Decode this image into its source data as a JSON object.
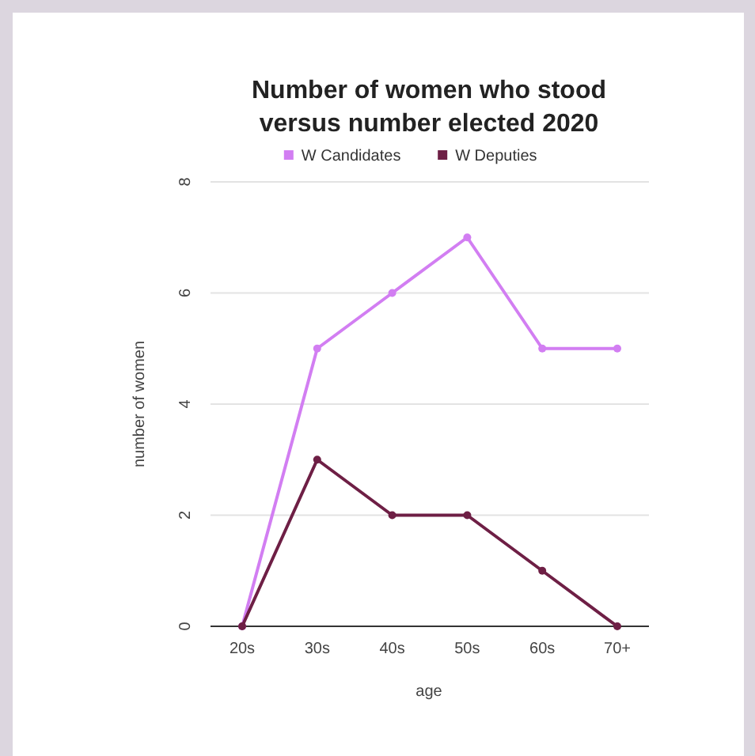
{
  "chart_data": {
    "type": "line",
    "title": "Number of women who stood\nversus number elected 2020",
    "xlabel": "age",
    "ylabel": "number of women",
    "categories": [
      "20s",
      "30s",
      "40s",
      "50s",
      "60s",
      "70+"
    ],
    "series": [
      {
        "name": "W Candidates",
        "color": "#d27ef2",
        "values": [
          0,
          5,
          6,
          7,
          5,
          5
        ]
      },
      {
        "name": "W Deputies",
        "color": "#6e1f45",
        "values": [
          0,
          3,
          2,
          2,
          1,
          0
        ]
      }
    ],
    "ylim": [
      0,
      8
    ],
    "yticks": [
      0,
      2,
      4,
      6,
      8
    ],
    "grid": "y",
    "legend": "top",
    "marker": "circle",
    "line_style": "solid"
  }
}
